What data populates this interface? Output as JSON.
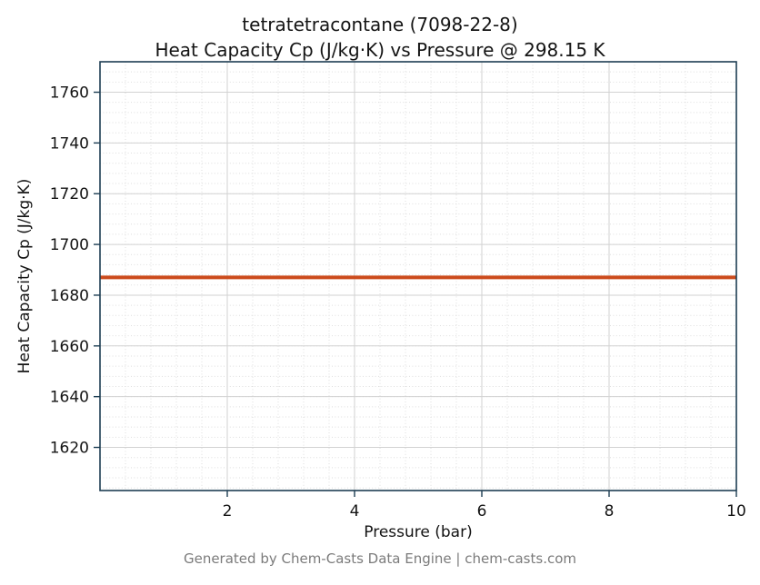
{
  "title": {
    "line1": "tetratetracontane (7098-22-8)",
    "line2": "Heat Capacity Cp (J/kg·K) vs Pressure @ 298.15 K"
  },
  "footer": "Generated by Chem-Casts Data Engine | chem-casts.com",
  "colors": {
    "line": "#cc4b1c",
    "frame": "#1d3d53",
    "grid_major": "#d2d2d2",
    "grid_minor": "#dedede",
    "tick_text": "#141414",
    "footer_text": "#7b7b7b"
  },
  "chart_data": {
    "type": "line",
    "title": "tetratetracontane (7098-22-8)\nHeat Capacity Cp (J/kg·K) vs Pressure @ 298.15 K",
    "xlabel": "Pressure (bar)",
    "ylabel": "Heat Capacity Cp (J/kg·K)",
    "xlim": [
      0,
      10
    ],
    "ylim": [
      1603,
      1772
    ],
    "x_ticks": [
      2,
      4,
      6,
      8,
      10
    ],
    "y_ticks": [
      1620,
      1640,
      1660,
      1680,
      1700,
      1720,
      1740,
      1760
    ],
    "x_minor_step": 0.4,
    "y_minor_step": 4,
    "grid": true,
    "legend": "none",
    "series": [
      {
        "name": "Heat Capacity Cp",
        "color": "#cc4b1c",
        "linewidth": 4,
        "x": [
          0,
          10
        ],
        "y": [
          1687,
          1687
        ]
      }
    ]
  }
}
